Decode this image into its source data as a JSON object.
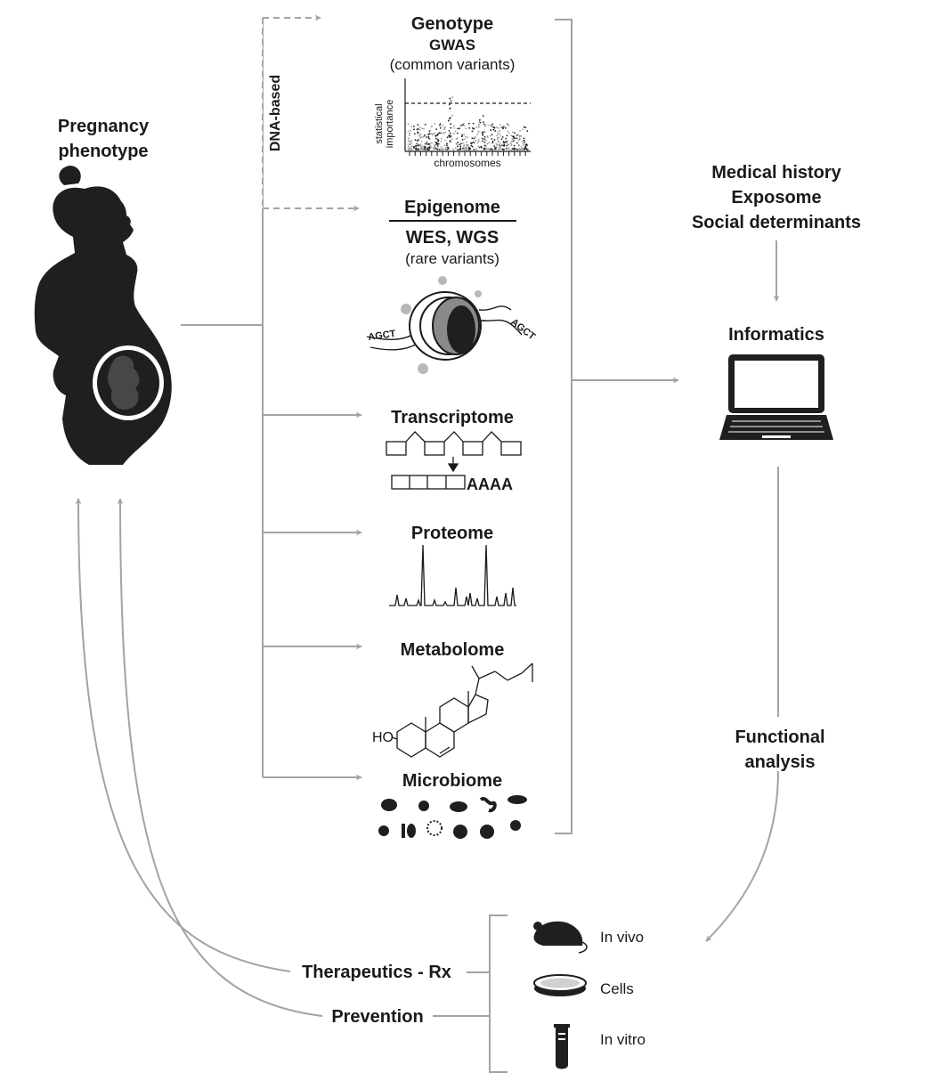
{
  "pregnancy": {
    "line1": "Pregnancy",
    "line2": "phenotype"
  },
  "dna_based": "DNA-based",
  "genotype": {
    "title": "Genotype",
    "subtitle": "GWAS",
    "note": "(common variants)",
    "ylabel_line1": "statistical",
    "ylabel_line2": "importance",
    "xlabel": "chromosomes"
  },
  "epigenome": {
    "title": "Epigenome",
    "subtitle": "WES, WGS",
    "note": "(rare variants)",
    "seq_left": "AGCT",
    "seq_right": "AGCT"
  },
  "transcriptome": {
    "title": "Transcriptome",
    "polya": "AAAA"
  },
  "proteome": {
    "title": "Proteome"
  },
  "metabolome": {
    "title": "Metabolome",
    "ho": "HO"
  },
  "microbiome": {
    "title": "Microbiome"
  },
  "inputs": {
    "line1": "Medical history",
    "line2": "Exposome",
    "line3": "Social determinants"
  },
  "informatics": "Informatics",
  "functional": {
    "line1": "Functional",
    "line2": "analysis"
  },
  "models": {
    "in_vivo": "In vivo",
    "cells": "Cells",
    "in_vitro": "In vitro"
  },
  "outcomes": {
    "therapeutics": "Therapeutics - Rx",
    "prevention": "Prevention"
  },
  "colors": {
    "arrow": "#a3a3a3",
    "ink": "#1a1a1a",
    "mid_gray": "#8a8a8a"
  }
}
